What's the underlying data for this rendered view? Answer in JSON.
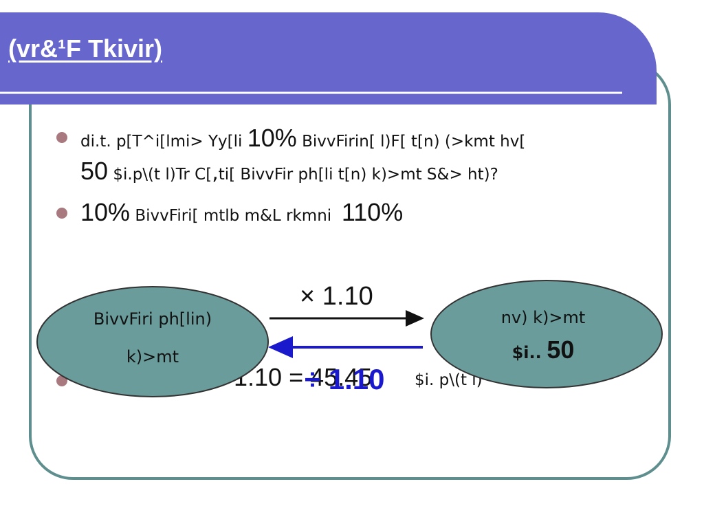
{
  "header": {
    "title": "(vr&¹F Tkivir)"
  },
  "bullets": [
    {
      "lines": [
        [
          "di.t. p[T^i[lmi> Yy[li",
          "10%",
          "BivvFirin[ l)F[ t[n) (>kmt hv["
        ],
        [
          "50",
          "$i.p\\(t l)Tr C[",
          ",",
          "ti[ BivvFir ph[li t[n) k)>mt S&> ht)?"
        ]
      ]
    },
    {
      "lines": [
        [
          "10%",
          "BivvFiri[ mtlb m&L rkmni",
          "110%"
        ]
      ]
    },
    {
      "lines": [
        [
          "1.10 = 45.45",
          "$i. p\\(t l)"
        ]
      ]
    }
  ],
  "diagram": {
    "left_node": {
      "lines": [
        "BivvFiri ph[lin)",
        "k)>mt"
      ]
    },
    "right_node": {
      "lines": [
        "nv) k)>mt",
        "$i..",
        "50"
      ]
    },
    "forward_label": "× 1.10",
    "backward_label": "÷ 1.10"
  }
}
